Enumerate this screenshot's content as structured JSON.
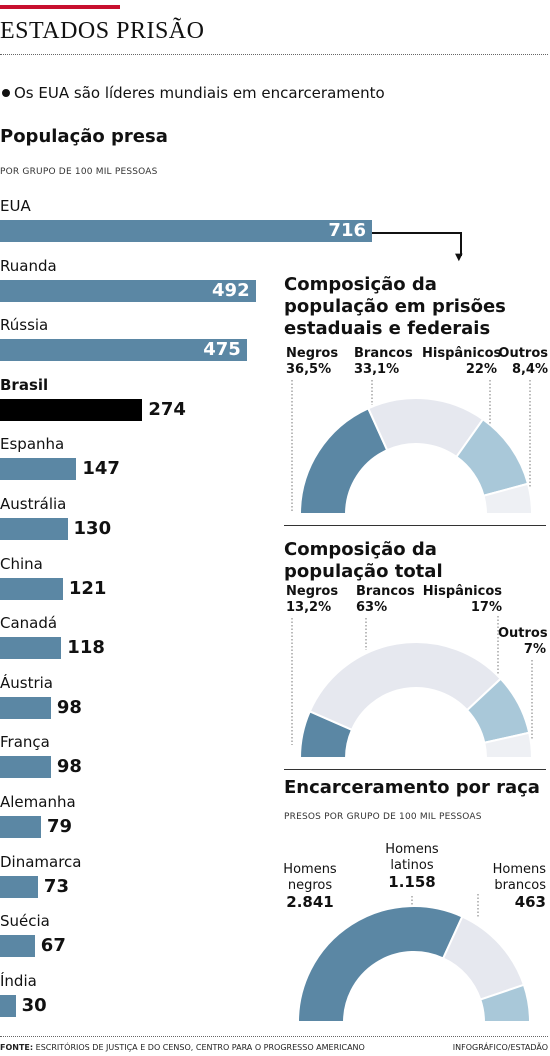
{
  "header": {
    "title": "ESTADOS PRISÃO",
    "subtitle": "Os EUA são líderes mundiais em encarceramento"
  },
  "colors": {
    "bar": "#5b87a4",
    "highlight": "#000000",
    "accent": "#c8102e",
    "white_seg": "#e6e8ef",
    "light_blue": "#a9c8d9",
    "pale": "#eef0f4"
  },
  "chart_data": [
    {
      "type": "bar",
      "title": "População presa",
      "subtitle": "POR GRUPO DE 100 MIL PESSOAS",
      "categories": [
        "EUA",
        "Ruanda",
        "Rússia",
        "Brasil",
        "Espanha",
        "Austrália",
        "China",
        "Canadá",
        "Áustria",
        "França",
        "Alemanha",
        "Dinamarca",
        "Suécia",
        "Índia"
      ],
      "values": [
        716,
        492,
        475,
        274,
        147,
        130,
        121,
        118,
        98,
        98,
        79,
        73,
        67,
        30
      ],
      "labels": [
        "716",
        "492",
        "475",
        "274",
        "147",
        "130",
        "121",
        "118",
        "98",
        "98",
        "79",
        "73",
        "67",
        "30"
      ],
      "highlight": "Brasil"
    },
    {
      "type": "pie",
      "title": "Composição da população em prisões estaduais e federais",
      "categories": [
        "Negros",
        "Brancos",
        "Hispânicos",
        "Outros"
      ],
      "values": [
        36.5,
        33.1,
        22,
        8.4
      ],
      "labels": [
        "36,5%",
        "33,1%",
        "22%",
        "8,4%"
      ]
    },
    {
      "type": "pie",
      "title": "Composição da população total",
      "categories": [
        "Negros",
        "Brancos",
        "Hispânicos",
        "Outros"
      ],
      "values": [
        13.2,
        63,
        17,
        7
      ],
      "labels": [
        "13,2%",
        "63%",
        "17%",
        "7%"
      ]
    },
    {
      "type": "pie",
      "title": "Encarceramento por raça",
      "subtitle": "PRESOS POR GRUPO DE 100 MIL PESSOAS",
      "categories": [
        "Homens negros",
        "Homens latinos",
        "Homens brancos"
      ],
      "values": [
        2841,
        1158,
        463
      ],
      "labels": [
        "2.841",
        "1.158",
        "463"
      ]
    }
  ],
  "footer": {
    "source_label": "FONTE:",
    "source_text": "ESCRITÓRIOS DE JUSTIÇA E DO CENSO, CENTRO PARA O PROGRESSO AMERICANO",
    "credit": "INFOGRÁFICO/ESTADÃO"
  }
}
